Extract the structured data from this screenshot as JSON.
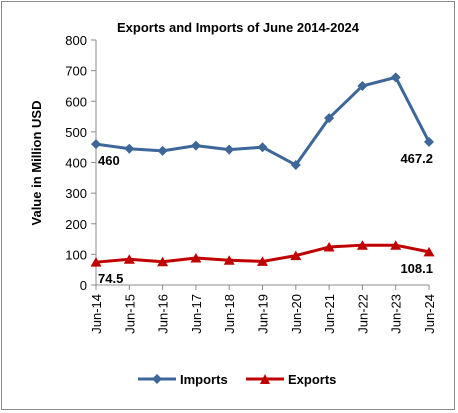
{
  "chart_data": {
    "type": "line",
    "title": "Exports and Imports of June 2014-2024",
    "ylabel": "Value in  Million  USD",
    "xlabel": "",
    "ylim": [
      0,
      800
    ],
    "yticks": [
      0,
      100,
      200,
      300,
      400,
      500,
      600,
      700,
      800
    ],
    "grid": false,
    "legend": "bottom",
    "categories": [
      "Jun-14",
      "Jun-15",
      "Jun-16",
      "Jun-17",
      "Jun-18",
      "Jun-19",
      "Jun-20",
      "Jun-21",
      "Jun-22",
      "Jun-23",
      "Jun-24"
    ],
    "series": [
      {
        "name": "Imports",
        "color": "#3d6699",
        "marker": "diamond",
        "values": [
          460,
          445,
          438,
          455,
          442,
          450,
          392,
          545,
          650,
          678,
          467.2
        ],
        "labels": [
          {
            "index": 0,
            "text": "460"
          },
          {
            "index": 10,
            "text": "467.2"
          }
        ]
      },
      {
        "name": "Exports",
        "color": "#c00000",
        "marker": "triangle",
        "values": [
          74.5,
          84,
          76,
          88,
          81,
          77,
          96,
          124,
          130,
          130,
          108.1
        ],
        "labels": [
          {
            "index": 0,
            "text": "74.5"
          },
          {
            "index": 10,
            "text": "108.1"
          }
        ]
      }
    ]
  }
}
